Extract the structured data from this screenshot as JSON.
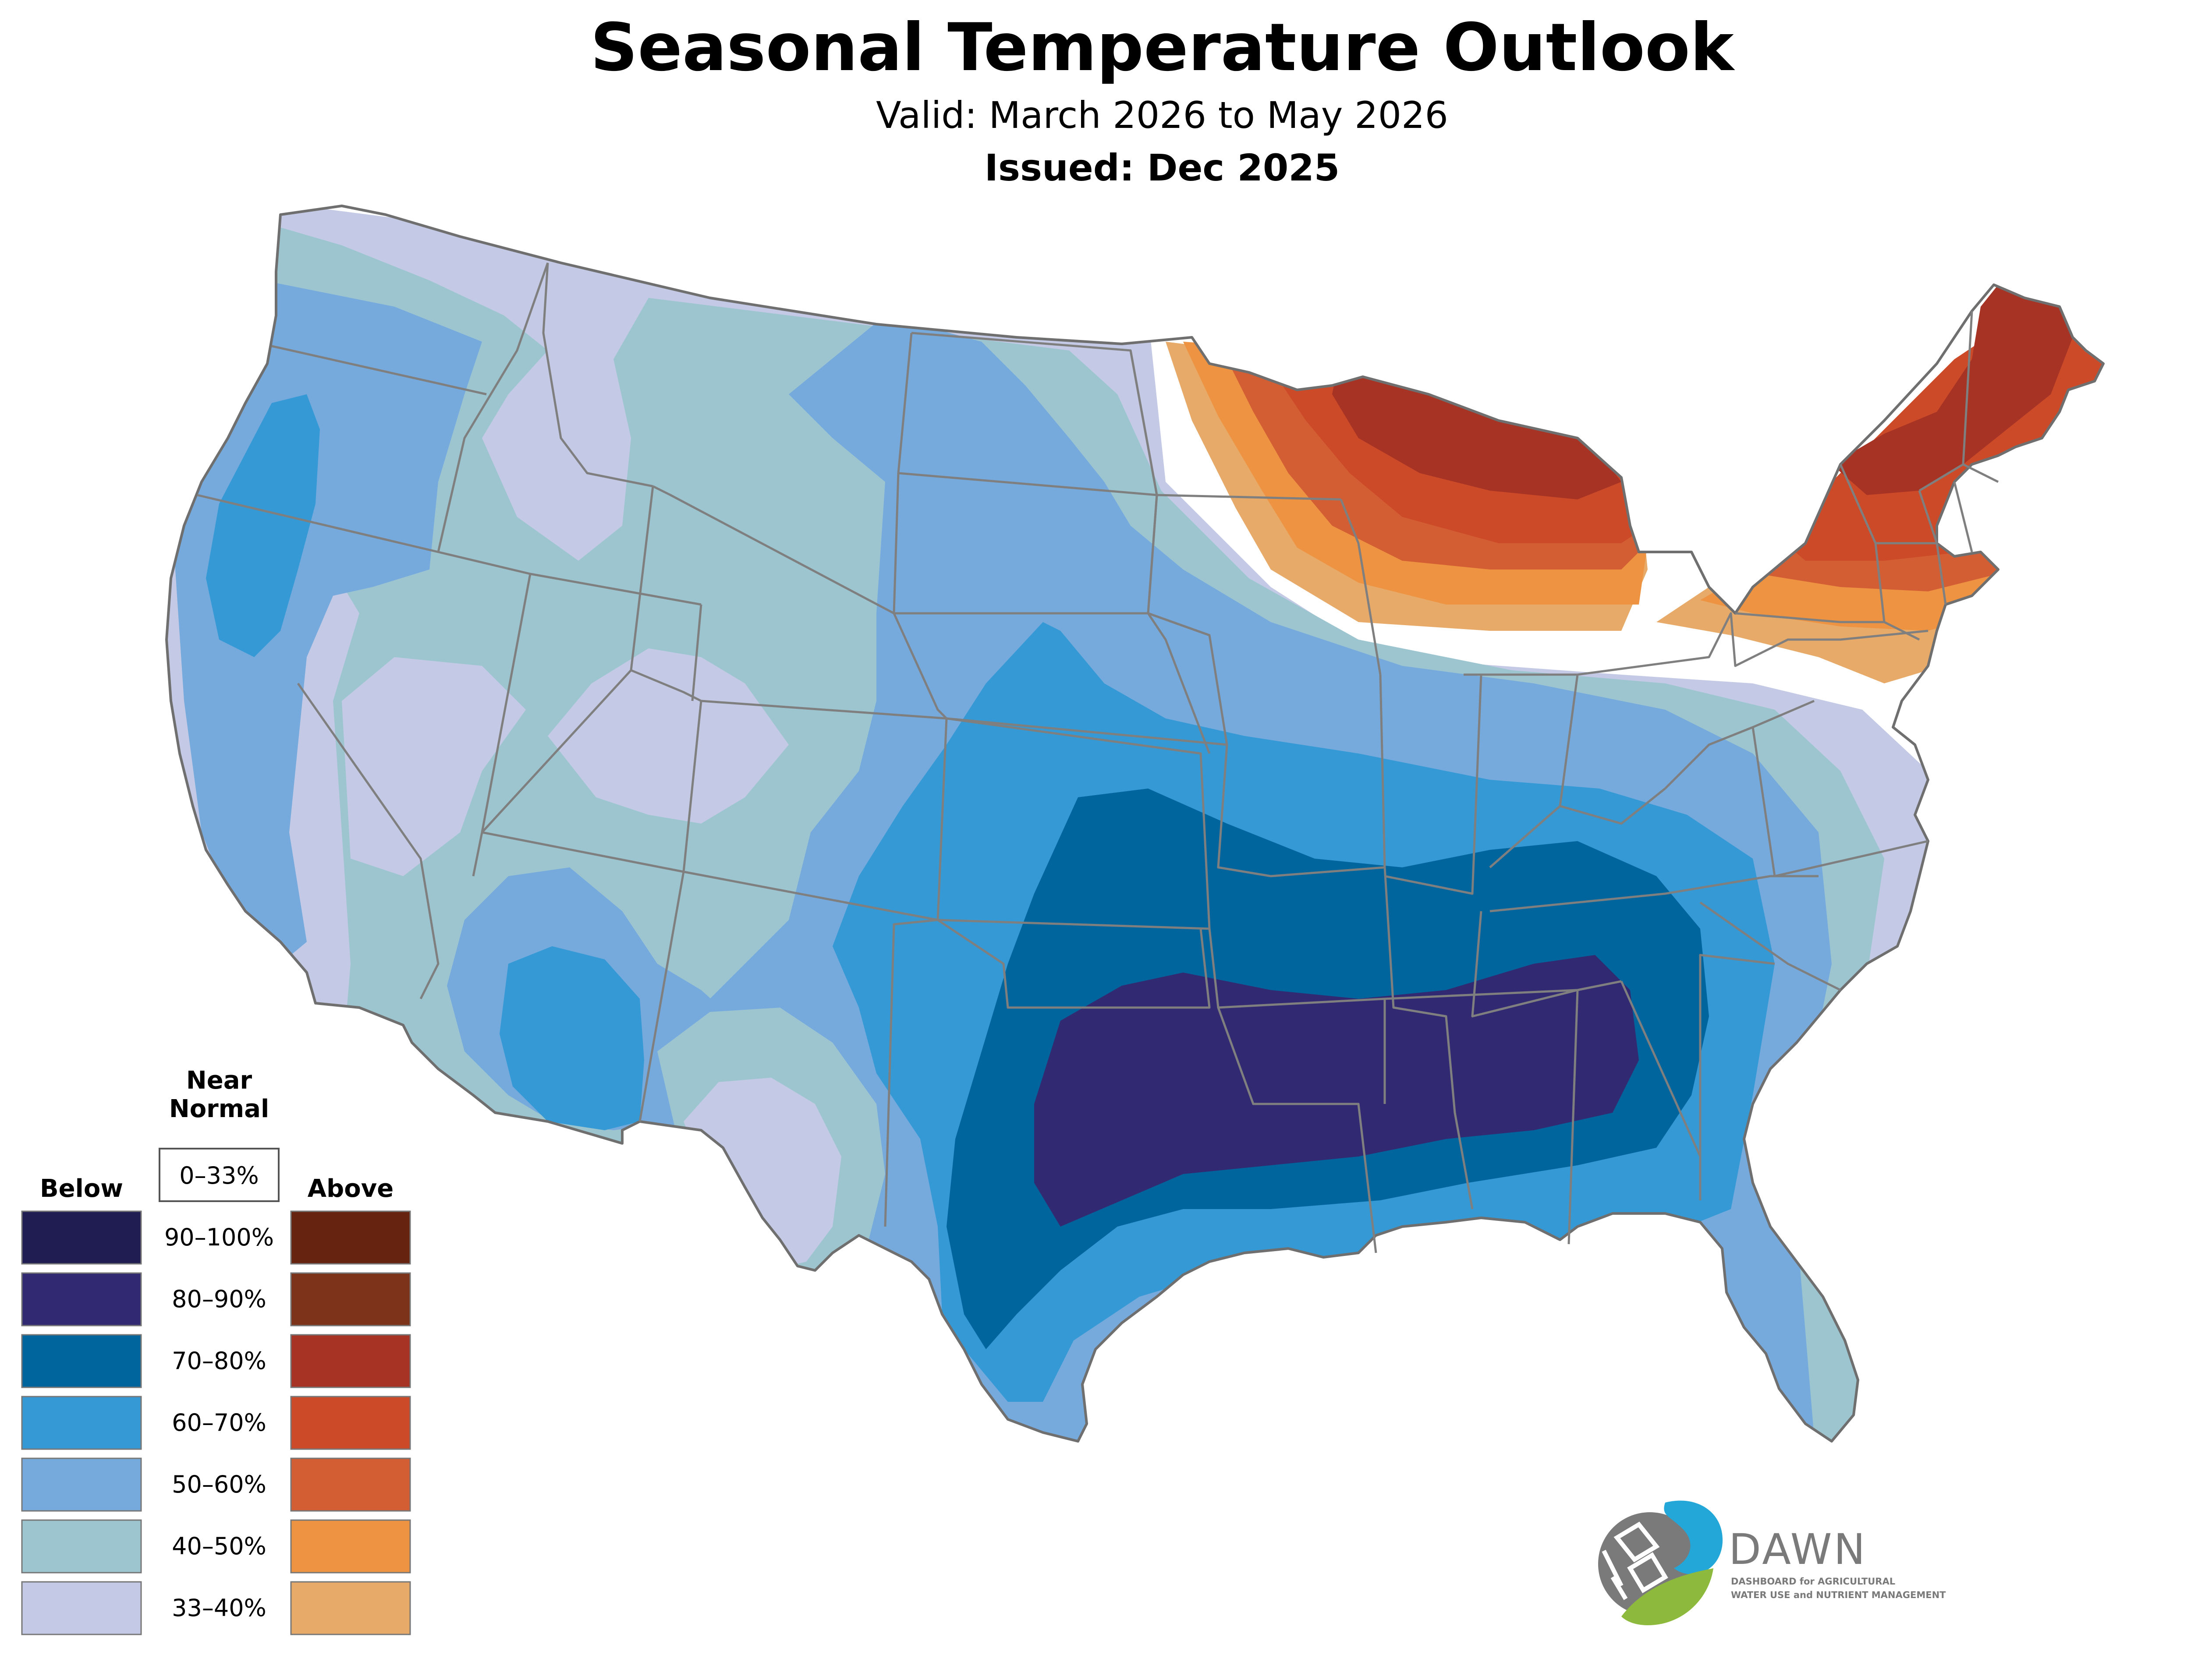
{
  "header": {
    "title": "Seasonal Temperature Outlook",
    "valid": "Valid: March 2026 to May 2026",
    "issued": "Issued: Dec 2025"
  },
  "legend": {
    "near_normal_heading_1": "Near",
    "near_normal_heading_2": "Normal",
    "near_normal_range": "0–33%",
    "below_heading": "Below",
    "above_heading": "Above",
    "rows": [
      {
        "label": "90–100%",
        "below_color": "#1f1d52",
        "above_color": "#662310"
      },
      {
        "label": "80–90%",
        "below_color": "#312a72",
        "above_color": "#7d321a"
      },
      {
        "label": "70–80%",
        "below_color": "#01659d",
        "above_color": "#a63324"
      },
      {
        "label": "60–70%",
        "below_color": "#3499d4",
        "above_color": "#cc4a28"
      },
      {
        "label": "50–60%",
        "below_color": "#76aadd",
        "above_color": "#d45e34"
      },
      {
        "label": "40–50%",
        "below_color": "#9cc5d0",
        "above_color": "#ed9342"
      },
      {
        "label": "33–40%",
        "below_color": "#c4cae5",
        "above_color": "#e8aa68"
      }
    ]
  },
  "logo": {
    "name": "DAWN",
    "tagline_line1": "DASHBOARD for AGRICULTURAL",
    "tagline_line2": "WATER USE and NUTRIENT MANAGEMENT",
    "colors": {
      "blue": "#22a7d8",
      "green": "#8dba3c",
      "gray": "#7a7a7a"
    }
  },
  "colors": {
    "state_lines": "#7f7f7f",
    "near_normal": "#ffffff"
  }
}
